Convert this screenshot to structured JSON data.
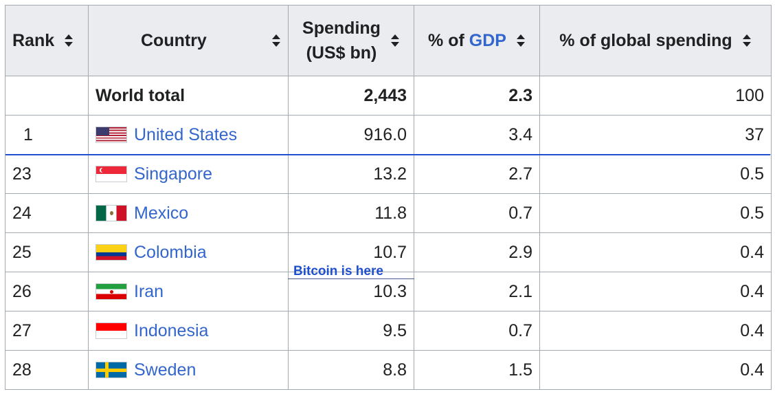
{
  "table": {
    "headers": {
      "rank": "Rank",
      "country": "Country",
      "spending_line1": "Spending",
      "spending_line2": "(US$ bn)",
      "gdp_prefix": "% of",
      "gdp_link": "GDP",
      "global": "% of global spending"
    },
    "sort_icon": "sort-icon",
    "world_total": {
      "rank": "",
      "label": "World total",
      "spending": "2,443",
      "gdp": "2.3",
      "global": "100"
    },
    "rows": [
      {
        "rank": "1",
        "country": "United States",
        "flag": "flag-us-icon",
        "spending": "916.0",
        "gdp": "3.4",
        "global": "37"
      },
      {
        "rank": "23",
        "country": "Singapore",
        "flag": "flag-sg-icon",
        "spending": "13.2",
        "gdp": "2.7",
        "global": "0.5"
      },
      {
        "rank": "24",
        "country": "Mexico",
        "flag": "flag-mx-icon",
        "spending": "11.8",
        "gdp": "0.7",
        "global": "0.5"
      },
      {
        "rank": "25",
        "country": "Colombia",
        "flag": "flag-co-icon",
        "spending": "10.7",
        "gdp": "2.9",
        "global": "0.4"
      },
      {
        "rank": "26",
        "country": "Iran",
        "flag": "flag-ir-icon",
        "spending": "10.3",
        "gdp": "2.1",
        "global": "0.4"
      },
      {
        "rank": "27",
        "country": "Indonesia",
        "flag": "flag-id-icon",
        "spending": "9.5",
        "gdp": "0.7",
        "global": "0.4"
      },
      {
        "rank": "28",
        "country": "Sweden",
        "flag": "flag-se-icon",
        "spending": "8.8",
        "gdp": "1.5",
        "global": "0.4"
      }
    ]
  },
  "annotation": {
    "label": "Bitcoin is here",
    "color": "#1f4fd1"
  },
  "colors": {
    "link": "#3366cc",
    "header_bg": "#eaecf0",
    "border": "#a2a9b1"
  }
}
